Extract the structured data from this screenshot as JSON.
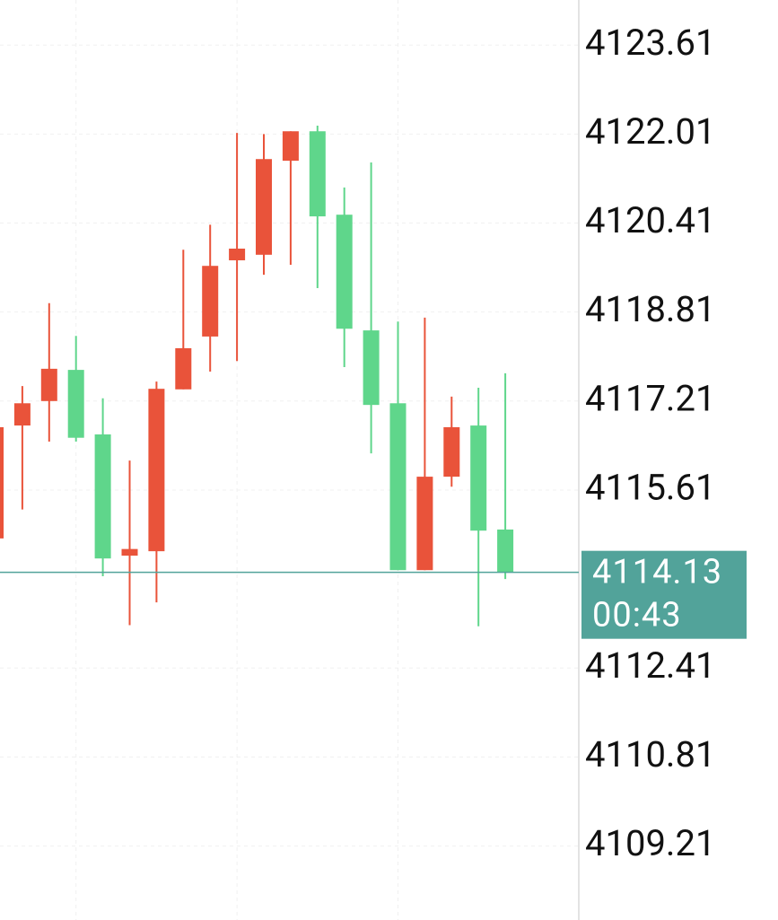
{
  "chart_data": {
    "type": "candlestick",
    "up_color": "#e9533a",
    "down_color": "#5fd68b",
    "open": [
      4114.74,
      4116.77,
      4117.21,
      4117.77,
      4116.61,
      4114.43,
      4114.51,
      4117.42,
      4118.37,
      4119.74,
      4119.84,
      4121.53,
      4122.06,
      4120.56,
      4118.48,
      4117.17,
      4114.17,
      4115.85,
      4116.77,
      4114.9
    ],
    "high": [
      4116.76,
      4117.48,
      4118.97,
      4118.38,
      4117.26,
      4116.14,
      4117.56,
      4119.93,
      4120.38,
      4122.03,
      4122.01,
      4122.06,
      4122.16,
      4121.05,
      4121.5,
      4118.64,
      4118.71,
      4117.29,
      4117.45,
      4117.71
    ],
    "low": [
      4114.71,
      4115.26,
      4116.48,
      4116.48,
      4114.06,
      4113.18,
      4113.59,
      4117.42,
      4117.74,
      4117.93,
      4119.48,
      4119.66,
      4119.24,
      4117.82,
      4116.27,
      4114.17,
      4114.17,
      4115.67,
      4113.16,
      4114.01
    ],
    "close": [
      4116.74,
      4117.17,
      4117.79,
      4116.55,
      4114.38,
      4114.55,
      4117.43,
      4118.16,
      4119.64,
      4119.95,
      4121.56,
      4122.06,
      4120.53,
      4118.51,
      4117.14,
      4114.17,
      4115.85,
      4116.74,
      4114.88,
      4114.13
    ],
    "ylim": [
      4107.88,
      4124.42
    ],
    "yticks": [
      4123.61,
      4122.01,
      4120.41,
      4118.81,
      4117.21,
      4115.61,
      4112.41,
      4110.81,
      4109.21
    ],
    "grid": true,
    "last_price": 4114.13,
    "last_price_color": "#52a39a",
    "countdown": "00:43"
  }
}
